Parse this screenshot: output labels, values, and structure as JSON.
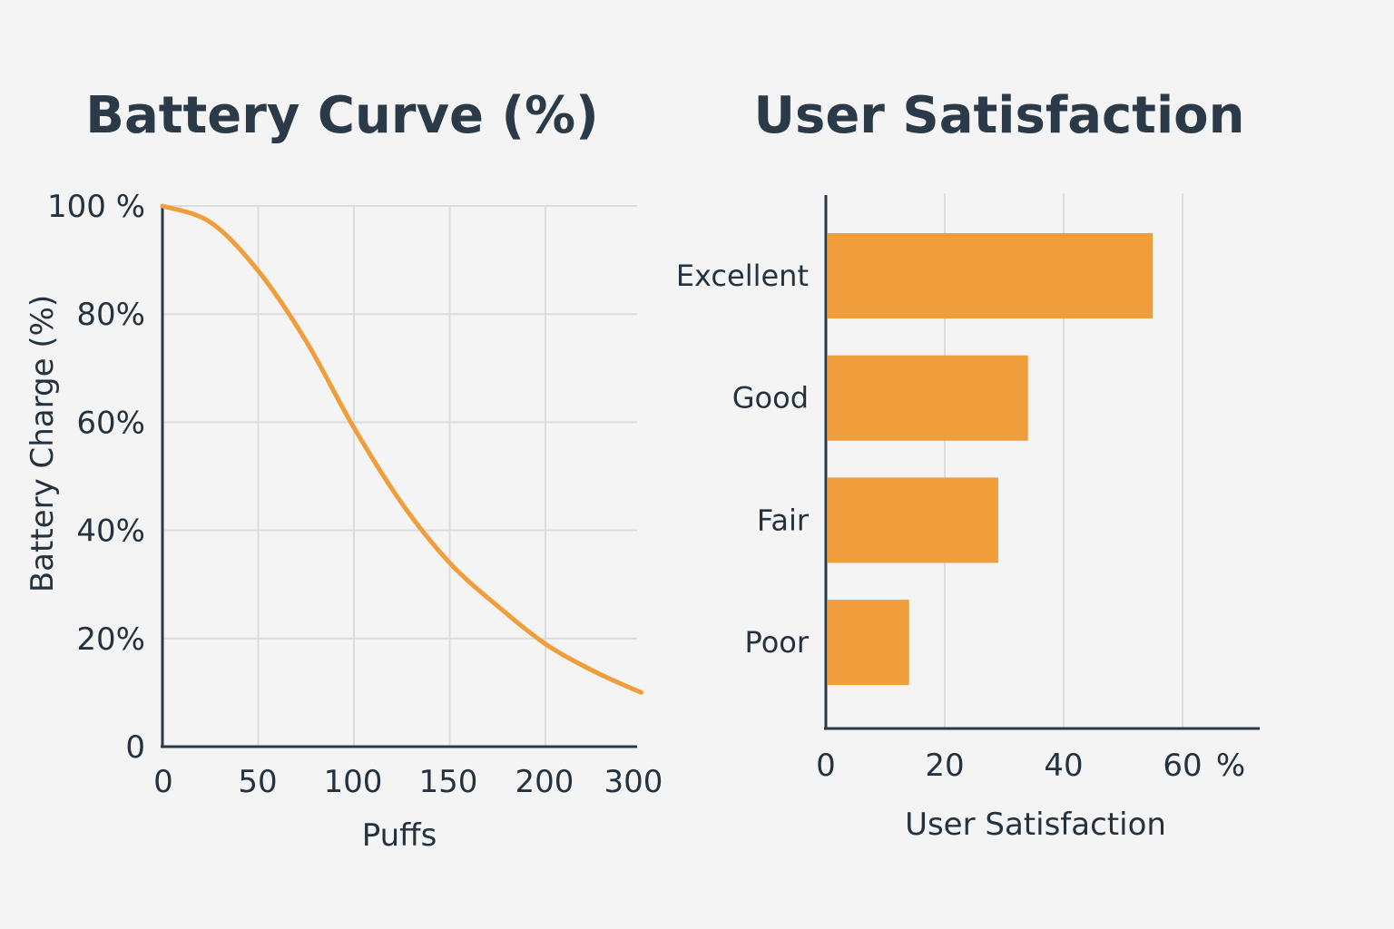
{
  "charts": {
    "battery": {
      "title": "Battery Curve (%)",
      "xlabel": "Puffs",
      "ylabel": "Battery Charge (%)",
      "x_ticks": [
        "0",
        "50",
        "100",
        "150",
        "200",
        "300"
      ],
      "y_ticks": [
        "0",
        "20%",
        "40%",
        "60%",
        "80%",
        "100 %"
      ]
    },
    "satisfaction": {
      "title": "User Satisfaction",
      "xlabel": "User Satisfaction",
      "x_ticks": [
        "0",
        "20",
        "40",
        "60"
      ],
      "x_unit": "%",
      "categories": [
        "Excellent",
        "Good",
        "Fair",
        "Poor"
      ]
    }
  },
  "colors": {
    "accent": "#f09d3b",
    "text": "#243240",
    "grid": "#dcdcdc",
    "background": "#f4f4f4"
  },
  "chart_data": [
    {
      "type": "line",
      "title": "Battery Curve (%)",
      "xlabel": "Puffs",
      "ylabel": "Battery Charge (%)",
      "x_ticks": [
        "0",
        "50",
        "100",
        "150",
        "200",
        "300"
      ],
      "y_ticks": [
        "0",
        "20%",
        "40%",
        "60%",
        "80%",
        "100 %"
      ],
      "ylim": [
        0,
        100
      ],
      "grid": true,
      "series": [
        {
          "x": [
            0,
            25,
            50,
            75,
            100,
            125,
            150,
            175,
            200,
            225,
            250
          ],
          "y": [
            100,
            97,
            88,
            75,
            59,
            45,
            34,
            26,
            19,
            14,
            10
          ]
        }
      ]
    },
    {
      "type": "bar",
      "orientation": "horizontal",
      "title": "User Satisfaction",
      "xlabel": "User Satisfaction",
      "categories": [
        "Excellent",
        "Good",
        "Fair",
        "Poor"
      ],
      "values": [
        55,
        34,
        29,
        14
      ],
      "xlim": [
        0,
        60
      ],
      "x_ticks": [
        "0",
        "20",
        "40",
        "60"
      ],
      "x_unit": "%",
      "grid": true
    }
  ]
}
